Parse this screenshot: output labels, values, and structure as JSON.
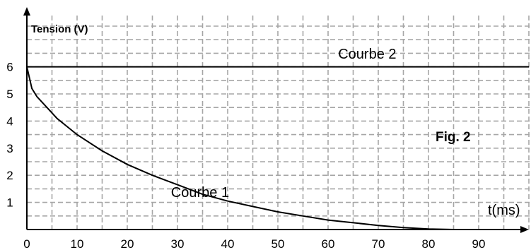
{
  "chart_data": {
    "type": "line",
    "ylabel": "Tension (V)",
    "xlabel": "t(ms)",
    "figure_label": "Fig. 2",
    "x_ticks": [
      "0",
      "10",
      "20",
      "30",
      "40",
      "50",
      "60",
      "70",
      "80",
      "90"
    ],
    "y_ticks": [
      "1",
      "2",
      "3",
      "4",
      "5",
      "6"
    ],
    "xlim": [
      0,
      100
    ],
    "ylim": [
      0,
      7.5
    ],
    "grid": true,
    "series": [
      {
        "name": "Courbe 1",
        "x": [
          0,
          1,
          2,
          4,
          6,
          8,
          10,
          15,
          20,
          25,
          30,
          35,
          40,
          45,
          50,
          55,
          60,
          65,
          70,
          75,
          80,
          85,
          89
        ],
        "y": [
          6.0,
          5.2,
          4.9,
          4.5,
          4.1,
          3.8,
          3.5,
          2.9,
          2.4,
          2.0,
          1.65,
          1.3,
          1.05,
          0.85,
          0.65,
          0.5,
          0.35,
          0.25,
          0.15,
          0.07,
          0.02,
          0.0,
          0.0
        ]
      },
      {
        "name": "Courbe 2",
        "x": [
          0,
          100
        ],
        "y": [
          6,
          6
        ]
      }
    ]
  }
}
